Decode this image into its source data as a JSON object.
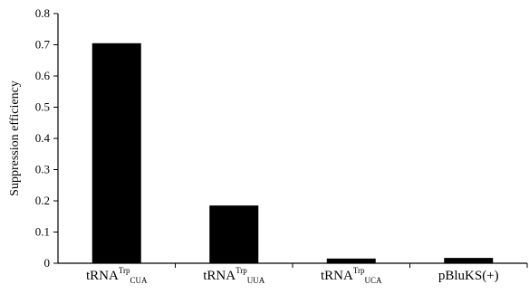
{
  "chart_data": {
    "type": "bar",
    "categories": [
      {
        "main": "tRNA",
        "sup": "Trp",
        "sub": "CUA"
      },
      {
        "main": "tRNA",
        "sup": "Trp",
        "sub": "UUA"
      },
      {
        "main": "tRNA",
        "sup": "Trp",
        "sub": "UCA"
      },
      {
        "main": "pBluKS(+)",
        "sup": "",
        "sub": ""
      }
    ],
    "values": [
      0.705,
      0.185,
      0.015,
      0.017
    ],
    "ylabel": "Suppression efficiency",
    "ylim": [
      0,
      0.8
    ],
    "yticks": [
      0,
      0.1,
      0.2,
      0.3,
      0.4,
      0.5,
      0.6,
      0.7,
      0.8
    ],
    "ytick_labels": [
      "0",
      "0.1",
      "0.2",
      "0.3",
      "0.4",
      "0.5",
      "0.6",
      "0.7",
      "0.8"
    ],
    "grid": false,
    "bar_color": "#000000"
  }
}
